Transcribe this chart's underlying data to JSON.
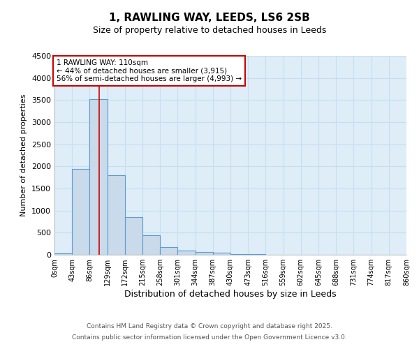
{
  "title": "1, RAWLING WAY, LEEDS, LS6 2SB",
  "subtitle": "Size of property relative to detached houses in Leeds",
  "xlabel": "Distribution of detached houses by size in Leeds",
  "ylabel": "Number of detached properties",
  "bin_edges": [
    0,
    43,
    86,
    129,
    172,
    215,
    258,
    301,
    344,
    387,
    430,
    473,
    516,
    559,
    602,
    645,
    688,
    731,
    774,
    817,
    860
  ],
  "bar_heights": [
    30,
    1950,
    3520,
    1800,
    860,
    450,
    170,
    100,
    60,
    40,
    20,
    15,
    5,
    3,
    2,
    1,
    1,
    0,
    0,
    0
  ],
  "bar_facecolor": "#c9daea",
  "bar_edgecolor": "#5b9bd5",
  "bar_linewidth": 0.8,
  "ylim": [
    0,
    4500
  ],
  "yticks": [
    0,
    500,
    1000,
    1500,
    2000,
    2500,
    3000,
    3500,
    4000,
    4500
  ],
  "property_line_x": 110,
  "property_line_color": "#cc0000",
  "annotation_title": "1 RAWLING WAY: 110sqm",
  "annotation_line1": "← 44% of detached houses are smaller (3,915)",
  "annotation_line2": "56% of semi-detached houses are larger (4,993) →",
  "annotation_box_color": "#cc0000",
  "grid_color": "#c5dff0",
  "background_color": "#deedf8",
  "footer_line1": "Contains HM Land Registry data © Crown copyright and database right 2025.",
  "footer_line2": "Contains public sector information licensed under the Open Government Licence v3.0."
}
